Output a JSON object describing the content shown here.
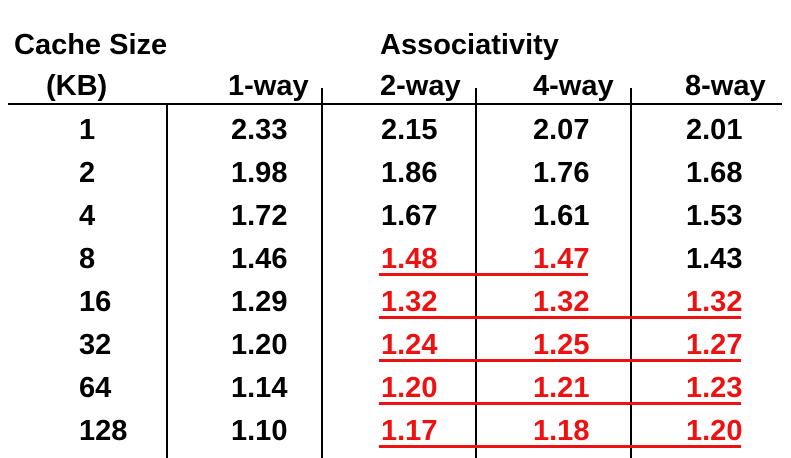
{
  "header": {
    "cache_size_line1": "Cache Size",
    "cache_size_line2": "(KB)",
    "associativity": "Associativity",
    "columns": [
      "1-way",
      "2-way",
      "4-way",
      "8-way"
    ]
  },
  "rows": [
    {
      "size": "1",
      "v": [
        "2.33",
        "2.15",
        "2.07",
        "2.01"
      ],
      "highlight": [
        false,
        false,
        false,
        false
      ]
    },
    {
      "size": "2",
      "v": [
        "1.98",
        "1.86",
        "1.76",
        "1.68"
      ],
      "highlight": [
        false,
        false,
        false,
        false
      ]
    },
    {
      "size": "4",
      "v": [
        "1.72",
        "1.67",
        "1.61",
        "1.53"
      ],
      "highlight": [
        false,
        false,
        false,
        false
      ]
    },
    {
      "size": "8",
      "v": [
        "1.46",
        "1.48",
        "1.47",
        "1.43"
      ],
      "highlight": [
        false,
        true,
        true,
        false
      ]
    },
    {
      "size": "16",
      "v": [
        "1.29",
        "1.32",
        "1.32",
        "1.32"
      ],
      "highlight": [
        false,
        true,
        true,
        true
      ]
    },
    {
      "size": "32",
      "v": [
        "1.20",
        "1.24",
        "1.25",
        "1.27"
      ],
      "highlight": [
        false,
        true,
        true,
        true
      ]
    },
    {
      "size": "64",
      "v": [
        "1.14",
        "1.20",
        "1.21",
        "1.23"
      ],
      "highlight": [
        false,
        true,
        true,
        true
      ]
    },
    {
      "size": "128",
      "v": [
        "1.10",
        "1.17",
        "1.18",
        "1.20"
      ],
      "highlight": [
        false,
        true,
        true,
        true
      ]
    }
  ],
  "colors": {
    "text": "#000000",
    "highlight": "#ee1111"
  }
}
